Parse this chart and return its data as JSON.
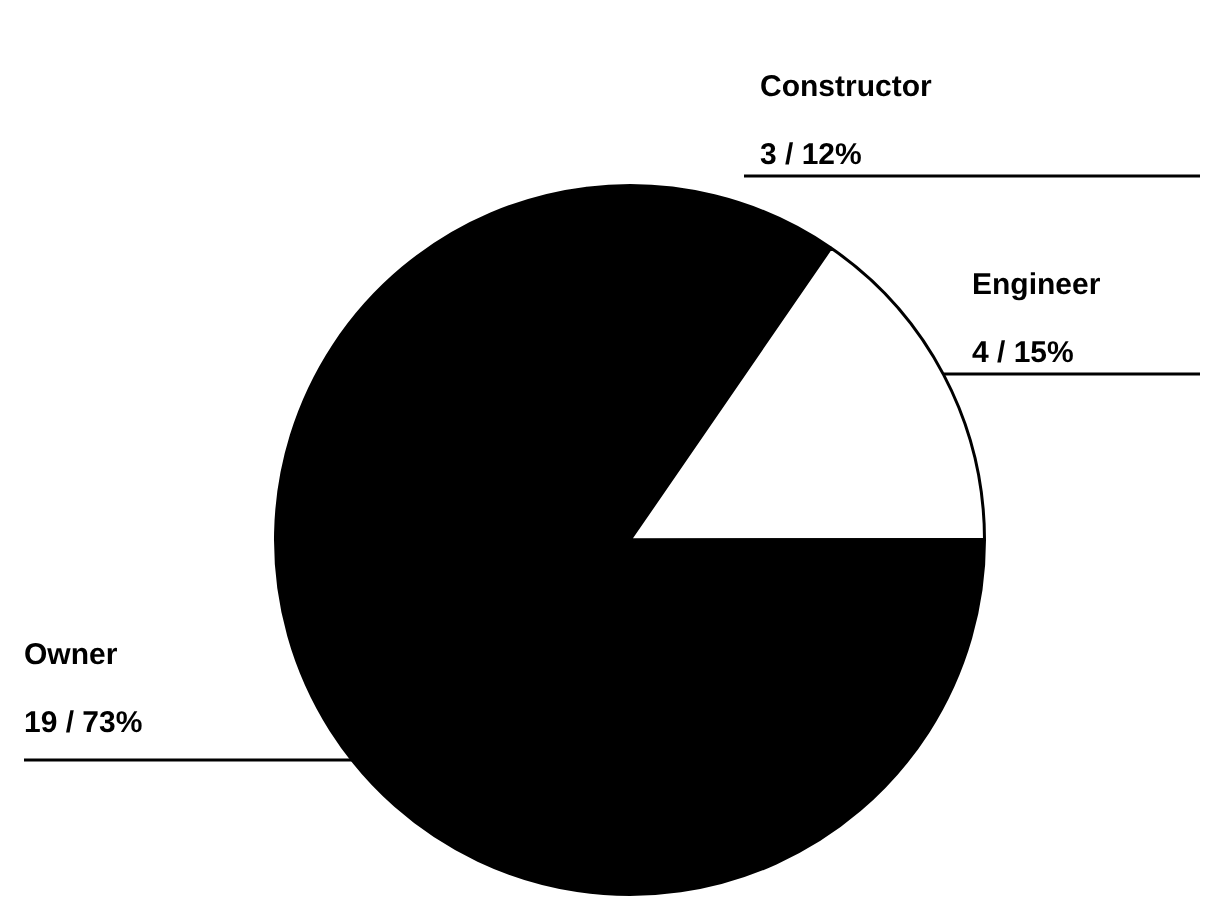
{
  "chart_data": {
    "type": "pie",
    "categories": [
      "Constructor",
      "Engineer",
      "Owner"
    ],
    "values": [
      3,
      4,
      19
    ],
    "colors": [
      "#000000",
      "#ffffff",
      "#000000"
    ],
    "value_labels": [
      "3 / 12%",
      "4 / 15%",
      "19 / 73%"
    ],
    "legend": false
  }
}
